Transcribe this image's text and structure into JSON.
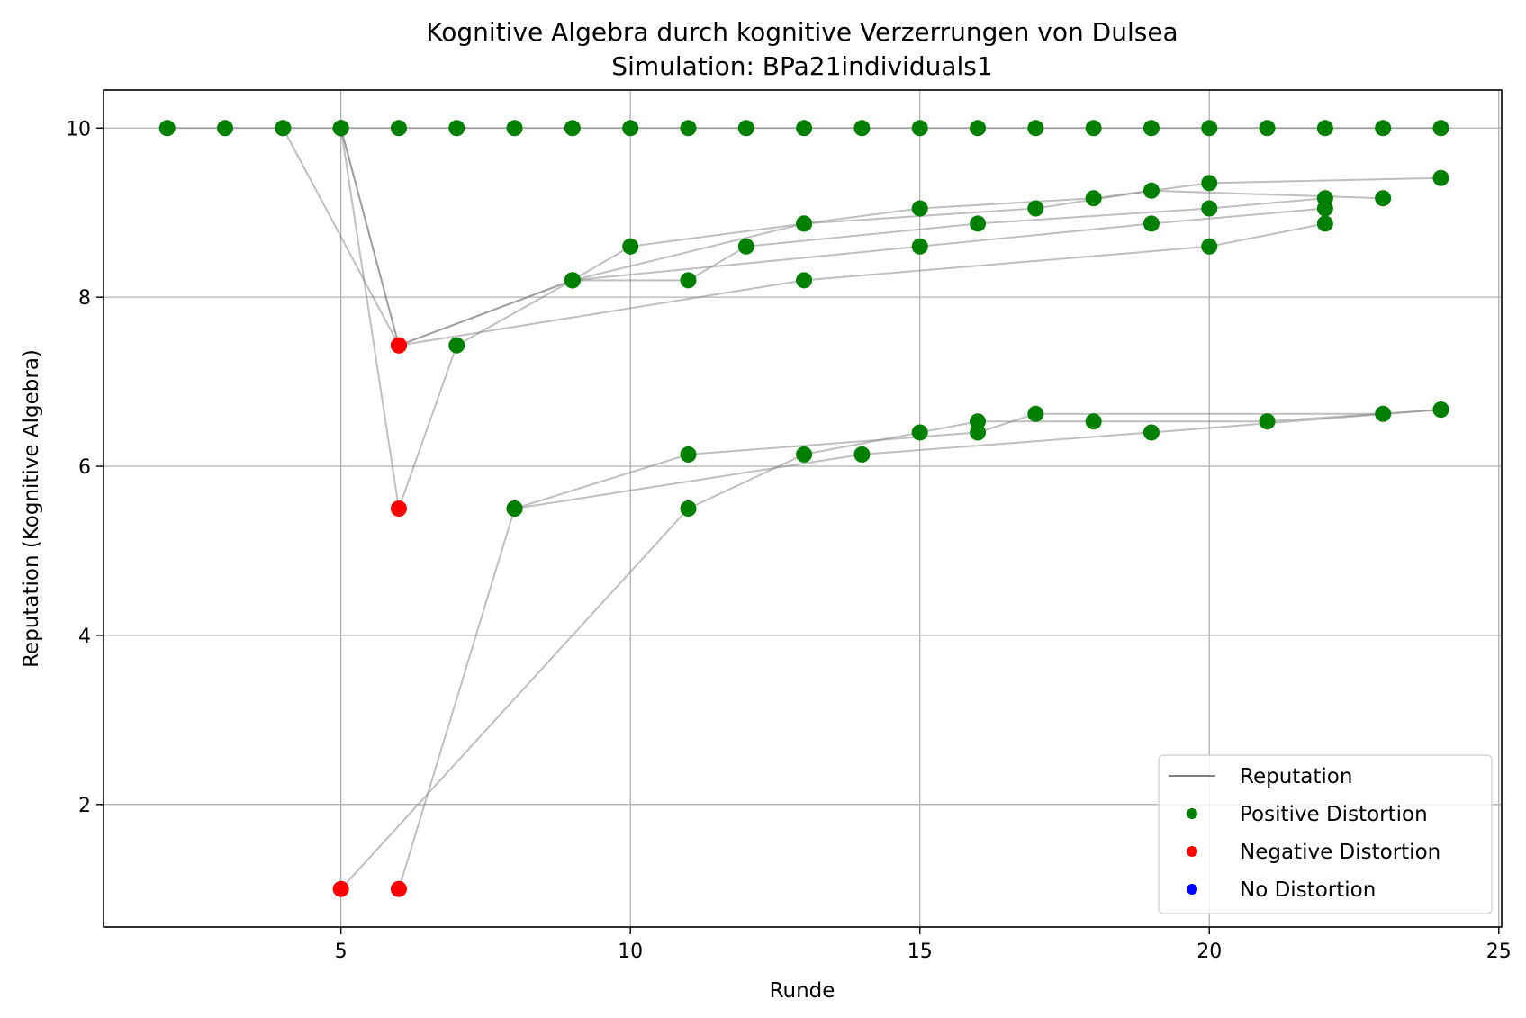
{
  "chart_data": {
    "type": "scatter",
    "title": "Kognitive Algebra durch kognitive Verzerrungen von Dulsea",
    "subtitle": "Simulation: BPa21individuals1",
    "xlabel": "Runde",
    "ylabel": "Reputation (Kognitive Algebra)",
    "xlim": [
      0.9,
      25.05
    ],
    "ylim": [
      0.55,
      10.45
    ],
    "x_ticks": [
      5,
      10,
      15,
      20,
      25
    ],
    "y_ticks": [
      2,
      4,
      6,
      8,
      10
    ],
    "grid": true,
    "legend_position": "bottom-right",
    "legend": [
      {
        "label": "Reputation",
        "kind": "line",
        "color": "#808080"
      },
      {
        "label": "Positive Distortion",
        "kind": "dot",
        "color": "#008000"
      },
      {
        "label": "Negative Distortion",
        "kind": "dot",
        "color": "#ff0000"
      },
      {
        "label": "No Distortion",
        "kind": "dot",
        "color": "#0000ff"
      }
    ],
    "colors": {
      "positive": "#008000",
      "negative": "#ff0000",
      "none": "#0000ff",
      "line": "#808080"
    },
    "series": [
      {
        "points": [
          [
            2,
            10
          ],
          [
            3,
            10
          ],
          [
            4,
            10
          ],
          [
            5,
            10
          ],
          [
            6,
            10
          ],
          [
            7,
            10
          ],
          [
            8,
            10
          ],
          [
            9,
            10
          ],
          [
            10,
            10
          ],
          [
            11,
            10
          ],
          [
            12,
            10
          ],
          [
            13,
            10
          ],
          [
            14,
            10
          ],
          [
            15,
            10
          ],
          [
            16,
            10
          ],
          [
            17,
            10
          ],
          [
            18,
            10
          ],
          [
            19,
            10
          ],
          [
            20,
            10
          ],
          [
            21,
            10
          ],
          [
            22,
            10
          ],
          [
            23,
            10
          ],
          [
            24,
            10
          ]
        ]
      },
      {
        "points": [
          [
            4,
            10
          ],
          [
            6,
            7.43
          ],
          [
            9,
            8.2
          ],
          [
            10,
            8.6
          ],
          [
            13,
            8.87
          ],
          [
            15,
            9.05
          ],
          [
            18,
            9.17
          ],
          [
            20,
            9.35
          ],
          [
            24,
            9.41
          ]
        ]
      },
      {
        "points": [
          [
            5,
            10
          ],
          [
            6,
            7.43
          ],
          [
            13,
            8.2
          ],
          [
            20,
            8.6
          ],
          [
            22,
            8.87
          ]
        ]
      },
      {
        "points": [
          [
            5,
            10
          ],
          [
            6,
            7.43
          ],
          [
            9,
            8.2
          ],
          [
            15,
            8.6
          ],
          [
            19,
            8.87
          ],
          [
            22,
            9.05
          ]
        ]
      },
      {
        "points": [
          [
            5,
            10
          ],
          [
            6,
            5.5
          ],
          [
            7,
            7.43
          ],
          [
            9,
            8.2
          ],
          [
            11,
            8.2
          ],
          [
            12,
            8.6
          ],
          [
            16,
            8.87
          ],
          [
            20,
            9.05
          ],
          [
            22,
            9.17
          ]
        ]
      },
      {
        "points": [
          [
            9,
            8.2
          ],
          [
            13,
            8.87
          ],
          [
            17,
            9.05
          ],
          [
            19,
            9.26
          ],
          [
            23,
            9.17
          ]
        ]
      },
      {
        "points": [
          [
            6,
            1
          ],
          [
            8,
            5.5
          ],
          [
            11,
            6.14
          ],
          [
            16,
            6.4
          ],
          [
            17,
            6.62
          ],
          [
            23,
            6.62
          ]
        ]
      },
      {
        "points": [
          [
            5,
            1
          ],
          [
            11,
            5.5
          ],
          [
            13,
            6.14
          ],
          [
            15,
            6.4
          ],
          [
            16,
            6.53
          ],
          [
            18,
            6.53
          ],
          [
            21,
            6.53
          ],
          [
            24,
            6.67
          ]
        ]
      },
      {
        "points": [
          [
            8,
            5.5
          ],
          [
            14,
            6.14
          ],
          [
            19,
            6.4
          ],
          [
            24,
            6.67
          ]
        ]
      }
    ],
    "negative_points": [
      [
        6,
        7.43
      ],
      [
        6,
        5.5
      ],
      [
        6,
        1
      ],
      [
        5,
        1
      ]
    ]
  }
}
